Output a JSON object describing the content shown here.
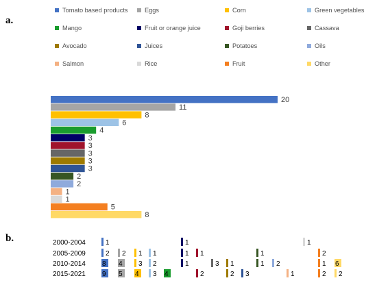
{
  "panel_labels": {
    "a": "a.",
    "b": "b."
  },
  "chart_data": [
    {
      "type": "bar",
      "orientation": "horizontal",
      "title": "",
      "xlabel": "",
      "ylabel": "",
      "xlim": [
        0,
        20
      ],
      "grid": false,
      "legend_position": "top",
      "categories": [
        "Tomato based products",
        "Eggs",
        "Corn",
        "Green vegetables",
        "Mango",
        "Fruit or orange juice",
        "Goji berries",
        "Cassava",
        "Avocado",
        "Juices",
        "Potatoes",
        "Oils",
        "Salmon",
        "Rice",
        "Fruit",
        "Other"
      ],
      "values": [
        20,
        11,
        8,
        6,
        4,
        3,
        3,
        3,
        3,
        3,
        2,
        2,
        1,
        1,
        5,
        8
      ],
      "colors": [
        "#4472c4",
        "#a5a5a5",
        "#ffc000",
        "#9dc3e6",
        "#1a9c2e",
        "#000066",
        "#a0142c",
        "#666666",
        "#9e7a00",
        "#2f5496",
        "#375623",
        "#8faadc",
        "#f4b183",
        "#d9d9d9",
        "#f47f20",
        "#ffd966"
      ]
    },
    {
      "type": "bar",
      "orientation": "period-markers",
      "title": "",
      "periods": [
        "2000-2004",
        "2005-2009",
        "2010-2014",
        "2015-2021"
      ],
      "categories": [
        "Tomato based products",
        "Eggs",
        "Corn",
        "Green vegetables",
        "Mango",
        "Fruit or orange juice",
        "Goji berries",
        "Cassava",
        "Avocado",
        "Juices",
        "Potatoes",
        "Oils",
        "Salmon",
        "Rice",
        "Fruit",
        "Other"
      ],
      "series": [
        {
          "name": "2000-2004",
          "values": [
            1,
            0,
            0,
            0,
            0,
            1,
            0,
            0,
            0,
            0,
            0,
            0,
            0,
            1,
            0,
            0
          ]
        },
        {
          "name": "2005-2009",
          "values": [
            2,
            2,
            1,
            1,
            0,
            1,
            1,
            0,
            0,
            0,
            1,
            0,
            0,
            0,
            2,
            0
          ]
        },
        {
          "name": "2010-2014",
          "values": [
            8,
            4,
            3,
            2,
            0,
            1,
            0,
            3,
            1,
            0,
            1,
            2,
            0,
            0,
            1,
            6
          ]
        },
        {
          "name": "2015-2021",
          "values": [
            9,
            5,
            4,
            3,
            4,
            0,
            2,
            0,
            2,
            3,
            0,
            0,
            1,
            0,
            2,
            2
          ]
        }
      ]
    }
  ]
}
